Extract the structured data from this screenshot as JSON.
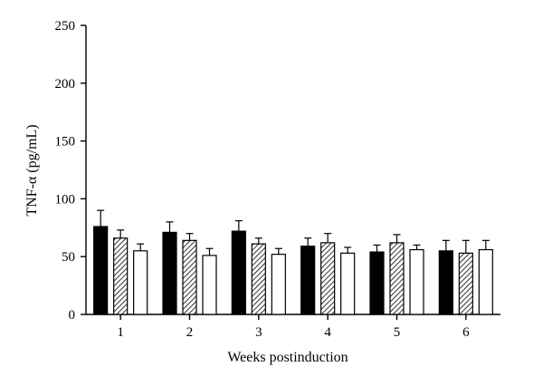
{
  "chart_data": {
    "type": "bar",
    "title": "",
    "xlabel": "Weeks postinduction",
    "ylabel": "TNF-α (pg/mL)",
    "ylim": [
      0,
      250
    ],
    "yticks": [
      "0",
      "50",
      "100",
      "150",
      "200",
      "250"
    ],
    "categories": [
      "1",
      "2",
      "3",
      "4",
      "5",
      "6"
    ],
    "grid": false,
    "legend": "none",
    "series": [
      {
        "fill": "solid-black",
        "values": [
          76,
          71,
          72,
          59,
          54,
          55
        ],
        "errors": [
          14,
          9,
          9,
          7,
          6,
          9
        ]
      },
      {
        "fill": "hatched",
        "values": [
          66,
          64,
          61,
          62,
          62,
          53
        ],
        "errors": [
          7,
          6,
          5,
          8,
          7,
          11
        ]
      },
      {
        "fill": "white",
        "values": [
          55,
          51,
          52,
          53,
          56,
          56
        ],
        "errors": [
          6,
          6,
          5,
          5,
          4,
          8
        ]
      }
    ]
  }
}
